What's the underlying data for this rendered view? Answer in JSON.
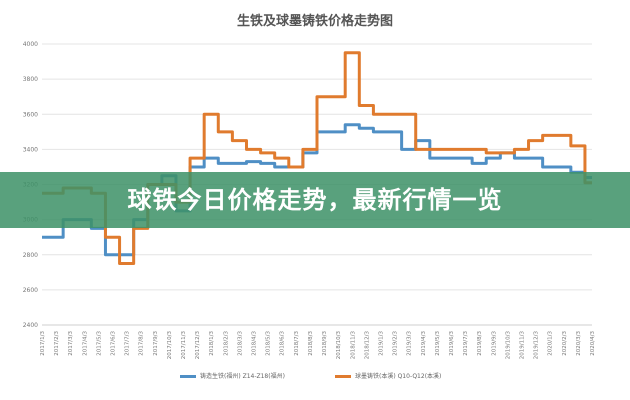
{
  "banner": {
    "text": "球铁今日价格走势，最新行情一览"
  },
  "chart_data": {
    "type": "line",
    "title": "生铁及球墨铸铁价格走势图",
    "xlabel": "",
    "ylabel": "",
    "ylim": [
      2400,
      4000
    ],
    "yticks": [
      2400,
      2600,
      2800,
      3000,
      3200,
      3400,
      3600,
      3800,
      4000
    ],
    "grid": true,
    "legend_position": "bottom",
    "categories": [
      "2017/1/3",
      "2017/2/3",
      "2017/3/3",
      "2017/4/3",
      "2017/5/3",
      "2017/6/3",
      "2017/7/3",
      "2017/8/3",
      "2017/9/3",
      "2017/10/3",
      "2017/11/3",
      "2017/12/3",
      "2018/1/3",
      "2018/2/3",
      "2018/3/3",
      "2018/4/3",
      "2018/5/3",
      "2018/6/3",
      "2018/7/3",
      "2018/8/3",
      "2018/9/3",
      "2018/10/3",
      "2018/11/3",
      "2018/12/3",
      "2019/1/3",
      "2019/2/3",
      "2019/3/3",
      "2019/4/3",
      "2019/5/3",
      "2019/6/3",
      "2019/7/3",
      "2019/8/3",
      "2019/9/3",
      "2019/10/3",
      "2019/11/3",
      "2019/12/3",
      "2020/1/3",
      "2020/2/3",
      "2020/3/3",
      "2020/4/3"
    ],
    "series": [
      {
        "name": "铸造生铁(福州) Z14-Z18(福州)",
        "color": "#4f8fc5",
        "values": [
          2900,
          2900,
          3000,
          3000,
          2950,
          2800,
          2800,
          3000,
          3200,
          3250,
          3050,
          3300,
          3350,
          3320,
          3320,
          3330,
          3320,
          3300,
          3300,
          3380,
          3500,
          3500,
          3540,
          3520,
          3500,
          3500,
          3400,
          3450,
          3350,
          3350,
          3350,
          3320,
          3350,
          3380,
          3350,
          3350,
          3300,
          3300,
          3270,
          3240
        ]
      },
      {
        "name": "球墨铸铁(本溪) Q10-Q12(本溪)",
        "color": "#e07b2e",
        "values": [
          3150,
          3150,
          3180,
          3180,
          3150,
          2900,
          2750,
          2950,
          3200,
          3200,
          3100,
          3350,
          3600,
          3500,
          3450,
          3400,
          3380,
          3350,
          3300,
          3400,
          3700,
          3700,
          3950,
          3650,
          3600,
          3600,
          3600,
          3400,
          3400,
          3400,
          3400,
          3400,
          3380,
          3380,
          3400,
          3450,
          3480,
          3480,
          3420,
          3210
        ]
      }
    ]
  }
}
